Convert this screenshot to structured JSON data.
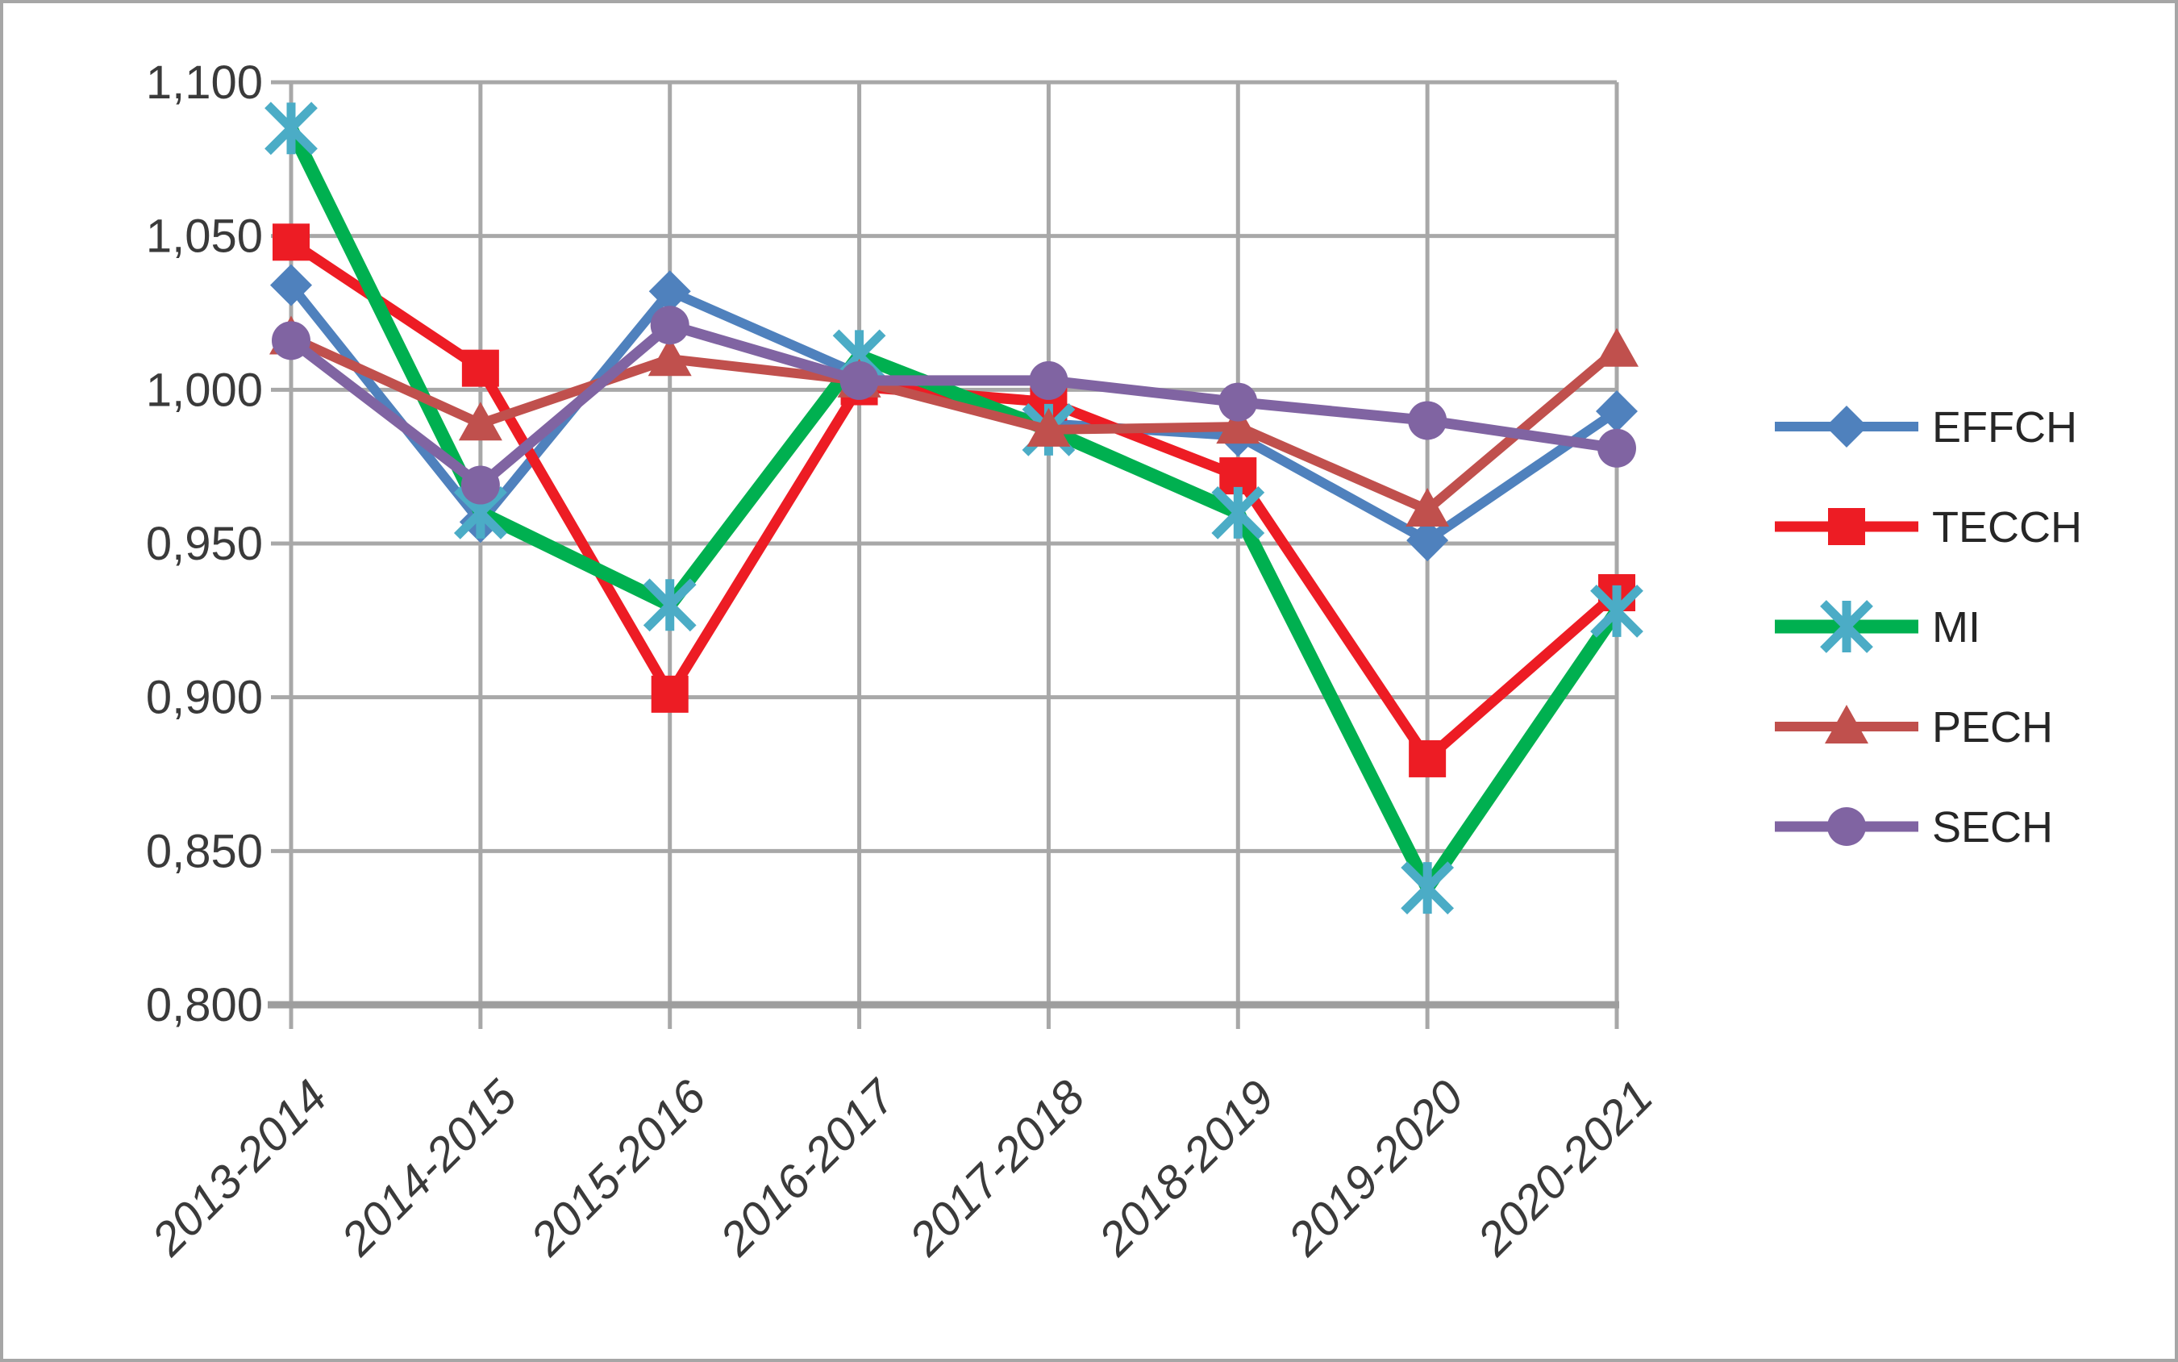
{
  "chart_data": {
    "type": "line",
    "title": "",
    "xlabel": "",
    "ylabel": "",
    "grid": true,
    "legend_position": "right",
    "categories": [
      "2013-2014",
      "2014-2015",
      "2015-2016",
      "2016-2017",
      "2017-2018",
      "2018-2019",
      "2019-2020",
      "2020-2021"
    ],
    "y_axis": {
      "min": 0.8,
      "max": 1.1,
      "step": 0.05,
      "tick_labels": [
        "0,800",
        "0,850",
        "0,900",
        "0,950",
        "1,000",
        "1,050",
        "1,100"
      ]
    },
    "series": [
      {
        "name": "EFFCH",
        "marker": "diamond",
        "line_color": "#4F81BD",
        "marker_color": "#4F81BD",
        "line_width": 12,
        "values": [
          1.034,
          0.957,
          1.032,
          1.005,
          0.989,
          0.985,
          0.951,
          0.993
        ]
      },
      {
        "name": "TECCH",
        "marker": "square",
        "line_color": "#ED1C24",
        "marker_color": "#ED1C24",
        "line_width": 13,
        "values": [
          1.048,
          1.007,
          0.901,
          1.001,
          0.996,
          0.972,
          0.88,
          0.934
        ]
      },
      {
        "name": "MI",
        "marker": "asterisk",
        "line_color": "#00B050",
        "marker_color": "#4BACC6",
        "line_width": 17,
        "values": [
          1.085,
          0.96,
          0.93,
          1.011,
          0.987,
          0.96,
          0.838,
          0.928
        ]
      },
      {
        "name": "PECH",
        "marker": "triangle",
        "line_color": "#C0504D",
        "marker_color": "#C0504D",
        "line_width": 12,
        "values": [
          1.017,
          0.989,
          1.01,
          1.003,
          0.987,
          0.988,
          0.961,
          1.013
        ]
      },
      {
        "name": "SECH",
        "marker": "circle",
        "line_color": "#8064A2",
        "marker_color": "#8064A2",
        "line_width": 13,
        "values": [
          1.016,
          0.969,
          1.021,
          1.003,
          1.003,
          0.996,
          0.99,
          0.981
        ]
      }
    ],
    "colors": {
      "gridline": "#A8A8A8",
      "axis_line": "#9E9E9E",
      "axis_text": "#3A3A3A",
      "legend_text": "#262626",
      "background": "#FFFFFF"
    }
  }
}
